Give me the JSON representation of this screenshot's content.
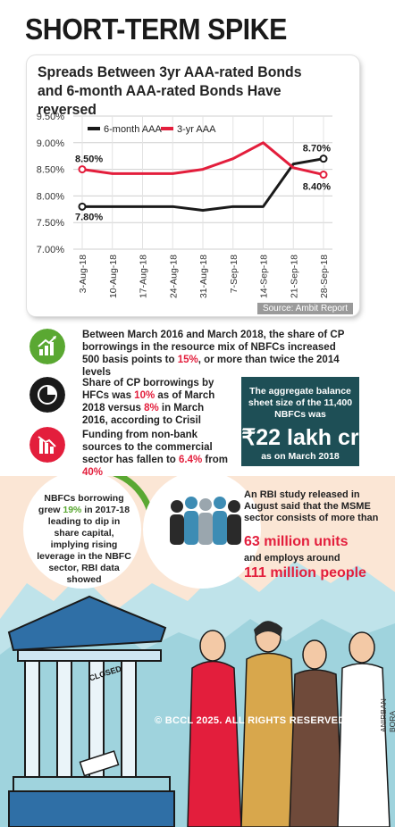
{
  "headline": "SHORT-TERM SPIKE",
  "chart_data": {
    "type": "line",
    "title": "Spreads Between 3yr AAA-rated Bonds and 6-month AAA-rated Bonds Have reversed",
    "categories": [
      "3-Aug-18",
      "10-Aug-18",
      "17-Aug-18",
      "24-Aug-18",
      "31-Aug-18",
      "7-Sep-18",
      "14-Sep-18",
      "21-Sep-18",
      "28-Sep-18"
    ],
    "y_ticks": [
      "9.50%",
      "9.00%",
      "8.50%",
      "8.00%",
      "7.50%",
      "7.00%"
    ],
    "ylim": [
      7.0,
      9.5
    ],
    "grid": true,
    "legend_position": "top-left",
    "series": [
      {
        "name": "6-month AAA",
        "color": "#1a1a1a",
        "values": [
          7.8,
          7.8,
          7.8,
          7.8,
          7.73,
          7.8,
          7.8,
          8.6,
          8.7
        ]
      },
      {
        "name": "3-yr AAA",
        "color": "#e31e3c",
        "values": [
          8.5,
          8.42,
          8.42,
          8.42,
          8.5,
          8.7,
          9.0,
          8.53,
          8.4
        ]
      }
    ],
    "data_labels": {
      "six_month_start": "7.80%",
      "three_year_start": "8.50%",
      "six_month_end": "8.70%",
      "three_year_end": "8.40%"
    },
    "source": "Source: Ambit Report"
  },
  "facts": {
    "cp_share": {
      "pre": "Between March 2016 and March 2018, the share of CP borrowings in the resource mix of NBFCs increased 500 basis points to ",
      "red": "15%",
      "post": ", or more than twice the 2014 levels"
    },
    "hfc": {
      "pre": "Share of CP borrowings by HFCs was ",
      "red1": "10%",
      "mid": " as of March 2018 versus ",
      "red2": "8%",
      "post": " in March 2016, according to Crisil"
    },
    "funding": {
      "pre": "Funding from non-bank sources to the commercial sector has fallen to ",
      "red1": "6.4%",
      "mid": " from ",
      "red2": "40%"
    }
  },
  "balance_box": {
    "line1": "The aggregate balance sheet size of the 11,400 NBFCs was",
    "amount": "₹22 lakh cr",
    "line2": "as on March 2018"
  },
  "nbfc_borrowing": {
    "pre": "NBFCs borrowing grew ",
    "green": "19%",
    "post": " in 2017-18 leading to dip in share capital, implying rising leverage in the NBFC sector, RBI data showed",
    "progress_fraction": 0.19
  },
  "msme": {
    "intro": "An RBI study released in August said that the MSME sector consists of more than",
    "units": "63 million units",
    "mid": "and employs around",
    "people": "111 million people"
  },
  "illustration": {
    "sign": "CLOSED"
  },
  "credit": "© BCCL 2025. ALL RIGHTS RESERVED.",
  "artist": "ANIRBAN BORA",
  "colors": {
    "red": "#e31e3c",
    "green": "#5aa832",
    "teal": "#1e4f56",
    "peach": "#fbe6d5"
  }
}
